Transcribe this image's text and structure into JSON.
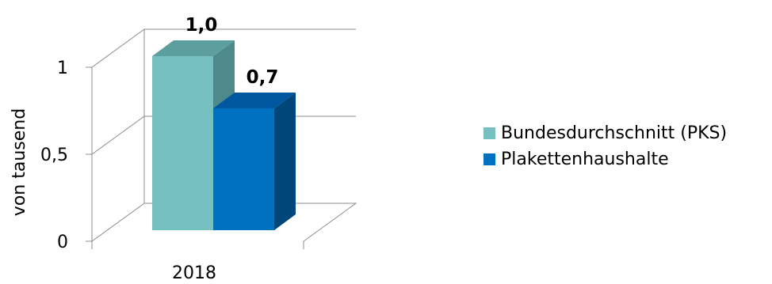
{
  "chart_data": {
    "type": "bar",
    "categories": [
      "2018"
    ],
    "series": [
      {
        "name": "Bundesdurchschnitt (PKS)",
        "values": [
          1.0
        ],
        "label": "1,0",
        "color": "#76c0c1",
        "side_color": "#4e8a8b",
        "top_color": "#5d9e9f"
      },
      {
        "name": "Plakettenhaushalte",
        "values": [
          0.7
        ],
        "label": "0,7",
        "color": "#0070c0",
        "side_color": "#00467a",
        "top_color": "#0057a0"
      }
    ],
    "ylabel": "von tausend",
    "yticks": [
      {
        "value": 0,
        "label": "0"
      },
      {
        "value": 0.5,
        "label": "0,5"
      },
      {
        "value": 1,
        "label": "1"
      }
    ],
    "ylim": [
      0,
      1
    ],
    "grid": true,
    "legend_position": "right",
    "projection": "3d-clustered"
  }
}
